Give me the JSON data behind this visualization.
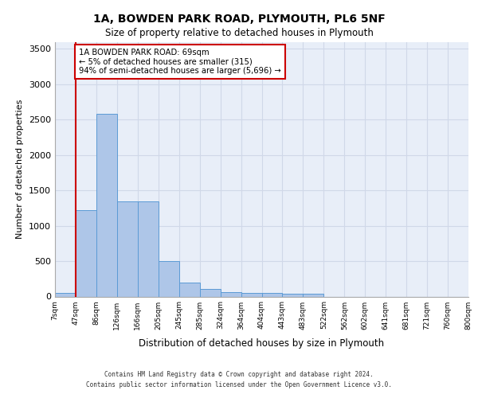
{
  "title_line1": "1A, BOWDEN PARK ROAD, PLYMOUTH, PL6 5NF",
  "title_line2": "Size of property relative to detached houses in Plymouth",
  "xlabel": "Distribution of detached houses by size in Plymouth",
  "ylabel": "Number of detached properties",
  "bin_labels": [
    "7sqm",
    "47sqm",
    "86sqm",
    "126sqm",
    "166sqm",
    "205sqm",
    "245sqm",
    "285sqm",
    "324sqm",
    "364sqm",
    "404sqm",
    "443sqm",
    "483sqm",
    "522sqm",
    "562sqm",
    "602sqm",
    "641sqm",
    "681sqm",
    "721sqm",
    "760sqm",
    "800sqm"
  ],
  "bar_values": [
    55,
    1220,
    2580,
    1340,
    1340,
    500,
    200,
    110,
    60,
    55,
    55,
    40,
    40,
    0,
    0,
    0,
    0,
    0,
    0,
    0
  ],
  "bar_color": "#aec6e8",
  "bar_edge_color": "#5b9bd5",
  "vline_x": 1,
  "vline_color": "#cc0000",
  "annotation_text": "1A BOWDEN PARK ROAD: 69sqm\n← 5% of detached houses are smaller (315)\n94% of semi-detached houses are larger (5,696) →",
  "annotation_box_color": "#cc0000",
  "annotation_text_color": "#000000",
  "ylim": [
    0,
    3600
  ],
  "yticks": [
    0,
    500,
    1000,
    1500,
    2000,
    2500,
    3000,
    3500
  ],
  "grid_color": "#d0d8e8",
  "bg_color": "#e8eef8",
  "footer_line1": "Contains HM Land Registry data © Crown copyright and database right 2024.",
  "footer_line2": "Contains public sector information licensed under the Open Government Licence v3.0."
}
